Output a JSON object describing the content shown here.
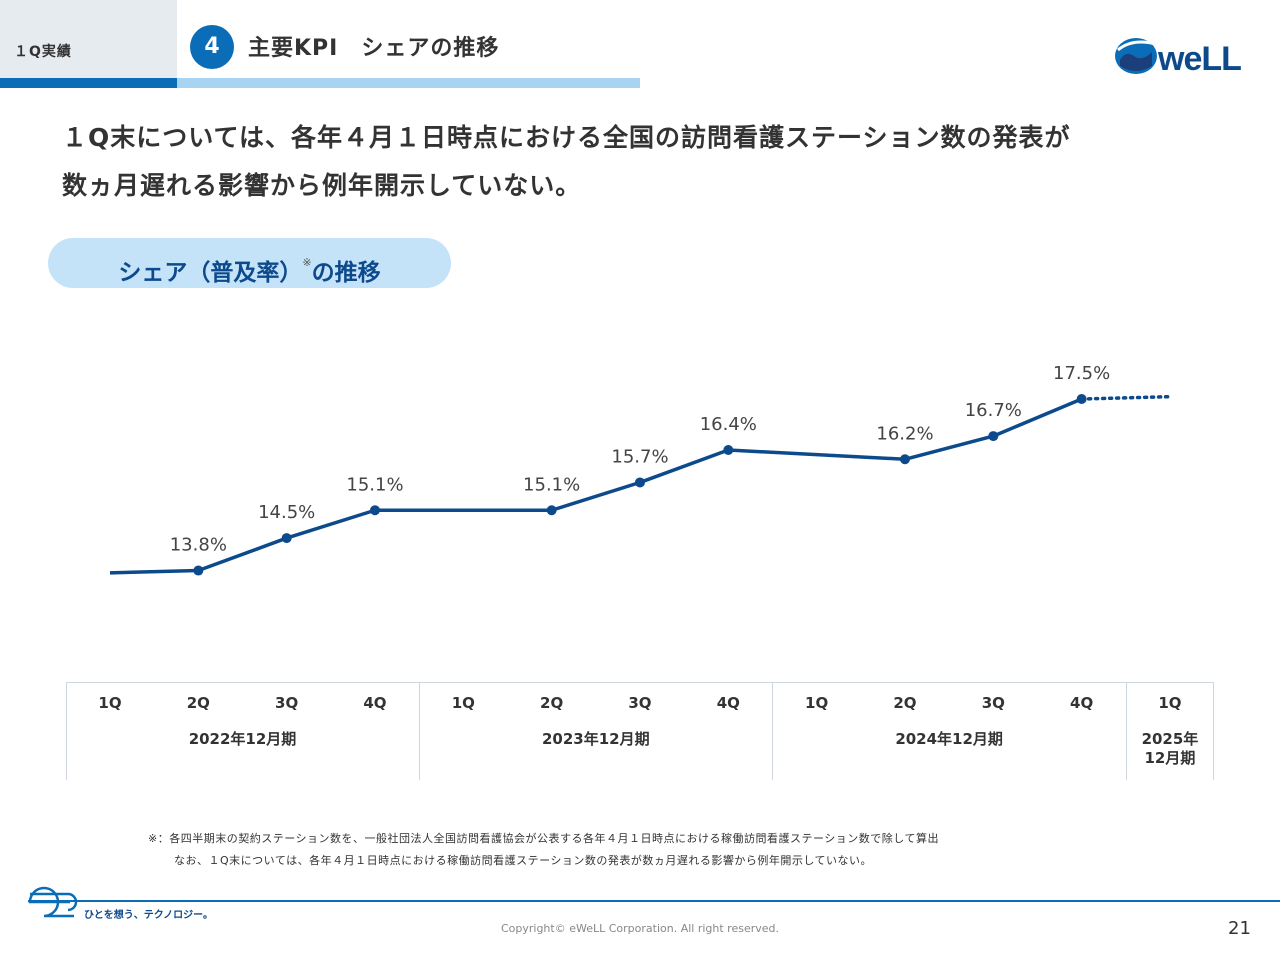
{
  "header": {
    "section_label": "１Q実績",
    "section_number": "4",
    "title": "主要KPI　シェアの推移",
    "logo_text": "weLL"
  },
  "lead_text": {
    "line1": "１Q末については、各年４月１日時点における全国の訪問看護ステーション数の発表が",
    "line2": "数ヵ月遅れる影響から例年開示していない。"
  },
  "subtitle": {
    "text": "シェア（普及率）",
    "mark": "※",
    "suffix": "の推移"
  },
  "chart_data": {
    "type": "line",
    "x": [
      "1Q",
      "2Q",
      "3Q",
      "4Q",
      "1Q",
      "2Q",
      "3Q",
      "4Q",
      "1Q",
      "2Q",
      "3Q",
      "4Q",
      "1Q"
    ],
    "periods": [
      {
        "label": "2022年12月期",
        "quarters": [
          "1Q",
          "2Q",
          "3Q",
          "4Q"
        ]
      },
      {
        "label": "2023年12月期",
        "quarters": [
          "1Q",
          "2Q",
          "3Q",
          "4Q"
        ]
      },
      {
        "label": "2024年12月期",
        "quarters": [
          "1Q",
          "2Q",
          "3Q",
          "4Q"
        ]
      },
      {
        "label": "2025年\n12月期",
        "quarters": [
          "1Q"
        ]
      }
    ],
    "series": [
      {
        "values": [
          null,
          13.8,
          14.5,
          15.1,
          null,
          15.1,
          15.7,
          16.4,
          null,
          16.2,
          16.7,
          17.5,
          null
        ],
        "labels": [
          "",
          "13.8%",
          "14.5%",
          "15.1%",
          "",
          "15.1%",
          "15.7%",
          "16.4%",
          "",
          "16.2%",
          "16.7%",
          "17.5%",
          ""
        ],
        "color": "#0d4a8c"
      }
    ],
    "line_start_value": 13.75,
    "dotted_end_value": 17.55,
    "grid": false,
    "legend": "none"
  },
  "footnote": {
    "line1": "※：各四半期末の契約ステーション数を、一般社団法人全国訪問看護協会が公表する各年４月１日時点における稼働訪問看護ステーション数で除して算出",
    "line2": "なお、１Q末については、各年４月１日時点における稼働訪問看護ステーション数の発表が数ヵ月遅れる影響から例年開示していない。"
  },
  "footer": {
    "slogan": "ひとを想う、テクノロジー。",
    "copyright": "Copyright© eWeLL Corporation. All right reserved.",
    "page_number": "21"
  },
  "colors": {
    "brand": "#0b6db7",
    "line": "#0d4a8c",
    "pill": "#c4e2f8"
  }
}
